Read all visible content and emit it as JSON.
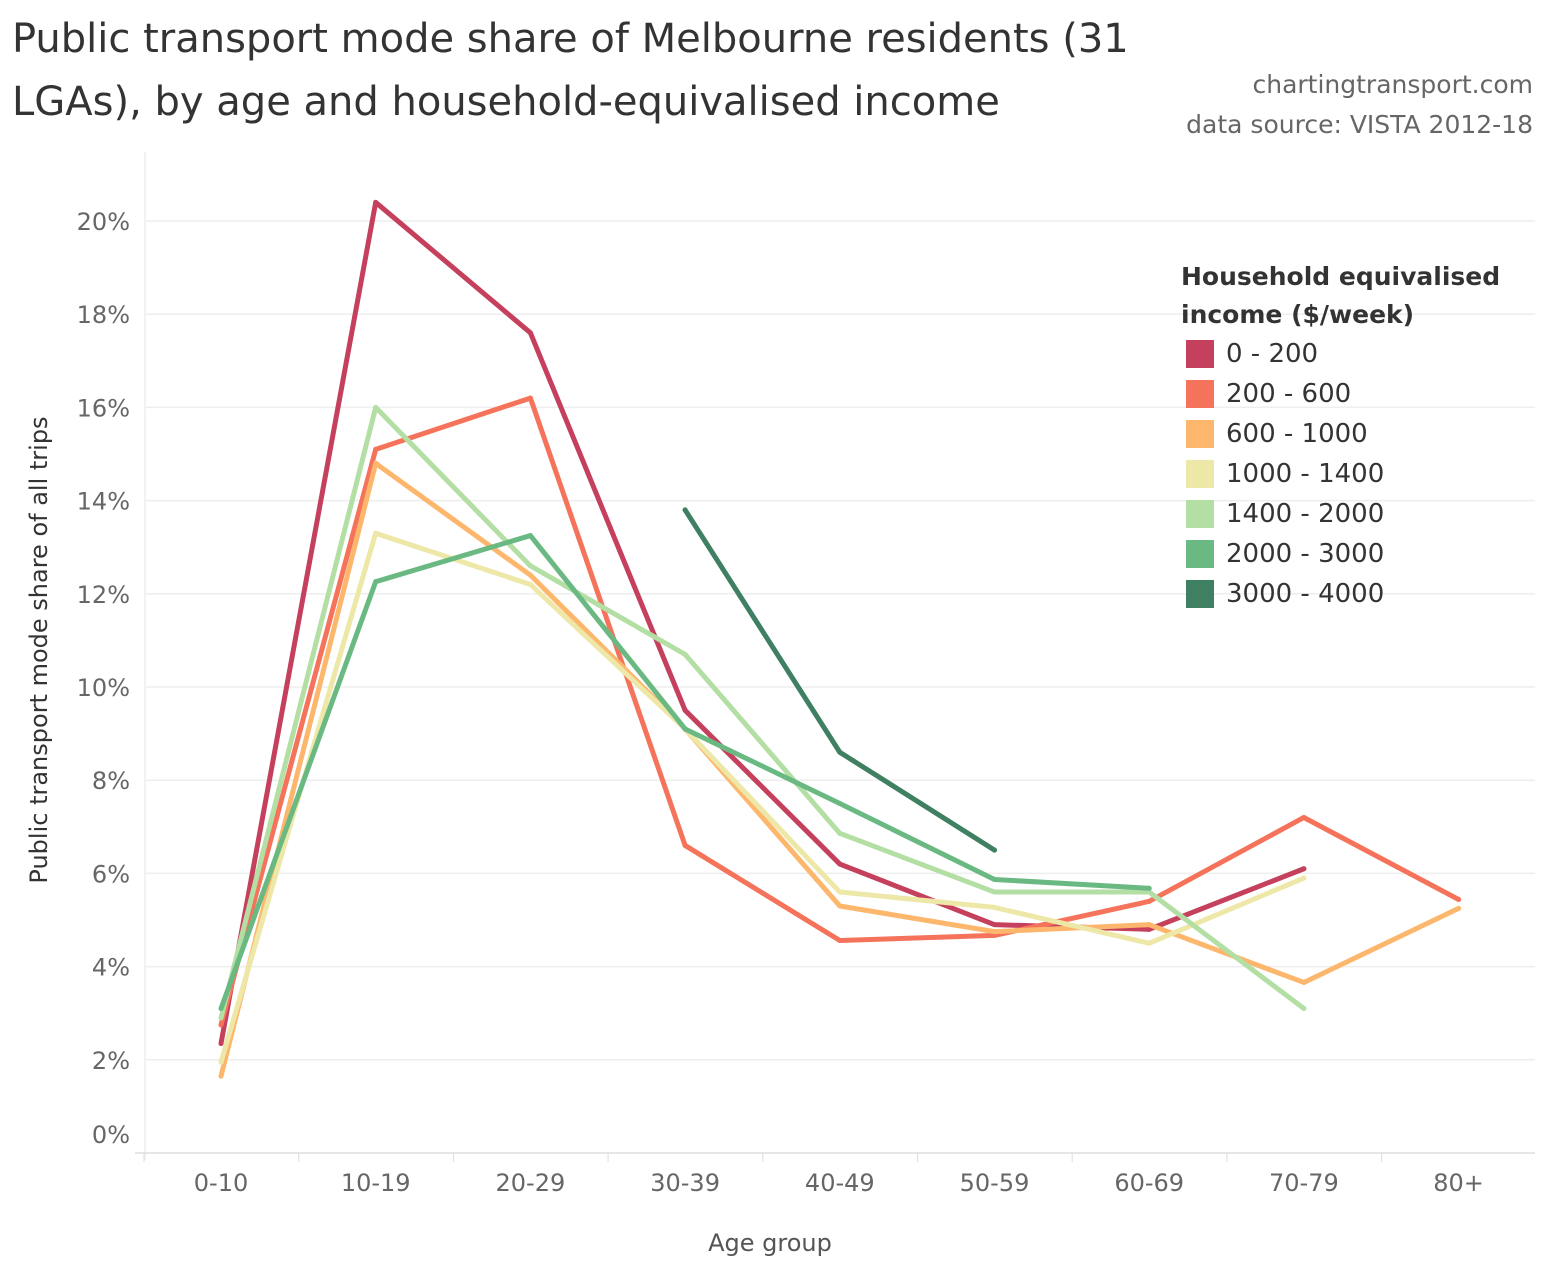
{
  "title": "Public transport mode share of Melbourne residents (31 LGAs), by age and household-equivalised income",
  "credit": "chartingtransport.com",
  "data_source": "data source: VISTA 2012-18",
  "chart_data": {
    "type": "line",
    "title": "Public transport mode share of Melbourne residents (31 LGAs), by age and household-equivalised income",
    "xlabel": "Age group",
    "ylabel": "Public transport mode share of all trips",
    "categories": [
      "0-10",
      "10-19",
      "20-29",
      "30-39",
      "40-49",
      "50-59",
      "60-69",
      "70-79",
      "80+"
    ],
    "ylim": [
      0,
      20
    ],
    "yticks": [
      "0%",
      "2%",
      "4%",
      "6%",
      "8%",
      "10%",
      "12%",
      "14%",
      "16%",
      "18%",
      "20%"
    ],
    "grid": true,
    "legend_title": "Household equivalised income ($/week)",
    "legend_placement": "top-right",
    "series": [
      {
        "name": "0 - 200",
        "color": "#c5405c",
        "values": [
          2.35,
          20.4,
          17.6,
          9.5,
          6.2,
          4.9,
          4.8,
          6.1,
          null
        ]
      },
      {
        "name": "200 - 600",
        "color": "#f5735b",
        "values": [
          2.75,
          15.1,
          16.2,
          6.6,
          4.56,
          4.67,
          5.4,
          7.2,
          5.44
        ]
      },
      {
        "name": "600 - 1000",
        "color": "#fdb76d",
        "values": [
          1.65,
          14.8,
          12.4,
          9.1,
          5.3,
          4.75,
          4.9,
          3.66,
          5.25
        ]
      },
      {
        "name": "1000 - 1400",
        "color": "#eee8a8",
        "values": [
          1.95,
          13.3,
          12.2,
          9.1,
          5.6,
          5.27,
          4.5,
          5.9,
          null
        ]
      },
      {
        "name": "1400 - 2000",
        "color": "#b4dfa4",
        "values": [
          2.9,
          16.0,
          12.6,
          10.7,
          6.86,
          5.6,
          5.6,
          3.1,
          null
        ]
      },
      {
        "name": "2000 - 3000",
        "color": "#6ab982",
        "values": [
          3.1,
          12.26,
          13.25,
          9.1,
          7.5,
          5.87,
          5.68,
          null,
          null
        ]
      },
      {
        "name": "3000 - 4000",
        "color": "#3f8062",
        "values": [
          null,
          null,
          null,
          13.8,
          8.6,
          6.5,
          null,
          null,
          null
        ]
      }
    ]
  }
}
